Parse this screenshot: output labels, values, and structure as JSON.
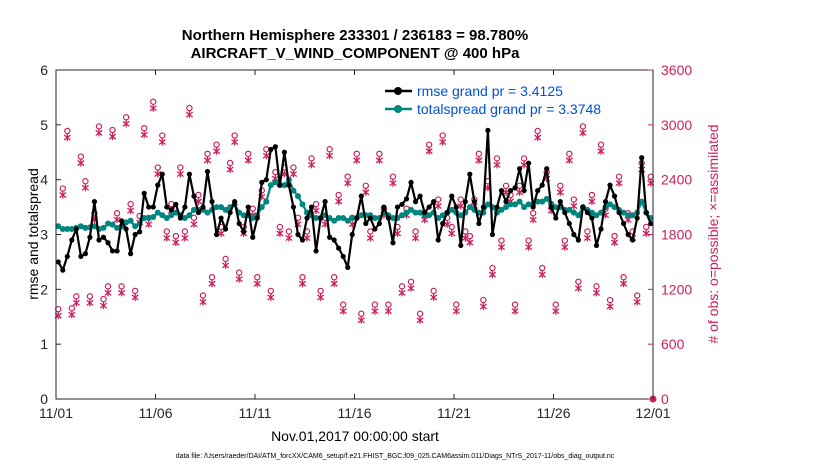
{
  "chart_data": {
    "type": "line",
    "title": "Northern Hemisphere 233301 / 236183 = 98.780%",
    "subtitle": "AIRCRAFT_V_WIND_COMPONENT @ 400 hPa",
    "xlabel": "Nov.01,2017 00:00:00 start",
    "ylabel_left": "rmse and totalspread",
    "ylabel_right": "# of obs: o=possible; ×=assimilated",
    "footer": "data file: /Users/raeder/DAI/ATM_forcXX/CAM6_setup/f.e21.FHIST_BGC.f09_025.CAM6assim.011/Diags_NTrS_2017-11/obs_diag_output.nc",
    "x_ticks": [
      "11/01",
      "11/06",
      "11/11",
      "11/16",
      "11/21",
      "11/26",
      "12/01"
    ],
    "x_range_days": [
      0,
      30
    ],
    "y_left_ticks": [
      "0",
      "1",
      "2",
      "3",
      "4",
      "5",
      "6"
    ],
    "y_left_range": [
      0,
      6
    ],
    "y_right_ticks": [
      "0",
      "600",
      "1200",
      "1800",
      "2400",
      "3000",
      "3600"
    ],
    "y_right_range": [
      0,
      3600
    ],
    "colors": {
      "rmse": "#000000",
      "spread": "#00857f",
      "obs": "#cc1f5d",
      "legend_text": "#0050d8"
    },
    "legend": [
      {
        "name": "rmse grand pr = 3.4125",
        "series": "rmse"
      },
      {
        "name": "totalspread grand pr = 3.3748",
        "series": "spread"
      }
    ],
    "series": [
      {
        "name": "rmse",
        "axis": "left",
        "values": [
          2.5,
          2.35,
          2.6,
          2.9,
          3.1,
          2.6,
          2.65,
          2.95,
          3.6,
          2.9,
          2.95,
          2.85,
          2.7,
          2.7,
          3.25,
          3.1,
          2.65,
          3.0,
          3.05,
          3.75,
          3.5,
          3.5,
          3.9,
          4.1,
          3.5,
          3.45,
          3.55,
          3.3,
          3.5,
          4.1,
          3.7,
          3.4,
          3.5,
          4.15,
          3.6,
          3.0,
          3.3,
          3.1,
          3.4,
          3.6,
          3.2,
          3.05,
          3.5,
          2.95,
          3.3,
          3.95,
          4.0,
          4.55,
          4.6,
          3.9,
          4.5,
          3.9,
          3.5,
          3.0,
          2.9,
          3.3,
          3.5,
          2.7,
          3.3,
          3.6,
          2.95,
          2.9,
          2.75,
          2.6,
          2.4,
          3.0,
          3.3,
          3.7,
          3.2,
          3.3,
          3.1,
          3.2,
          3.5,
          3.3,
          2.85,
          3.5,
          3.55,
          3.65,
          3.95,
          3.6,
          3.7,
          3.4,
          3.5,
          3.6,
          2.9,
          3.2,
          3.4,
          3.7,
          3.5,
          2.8,
          3.6,
          4.1,
          3.6,
          3.2,
          3.5,
          4.9,
          3.0,
          3.5,
          3.8,
          3.6,
          3.8,
          3.85,
          4.2,
          3.8,
          4.3,
          3.5,
          3.8,
          3.9,
          4.2,
          3.5,
          3.3,
          3.6,
          3.4,
          3.2,
          3.0,
          2.9,
          3.5,
          3.4,
          3.3,
          2.8,
          3.1,
          3.6,
          3.9,
          3.7,
          3.4,
          3.2,
          3.0,
          2.9,
          3.3,
          4.4,
          3.4,
          3.2
        ]
      },
      {
        "name": "totalspread",
        "axis": "left",
        "values": [
          3.15,
          3.1,
          3.1,
          3.1,
          3.12,
          3.15,
          3.12,
          3.13,
          3.15,
          3.1,
          3.12,
          3.2,
          3.18,
          3.12,
          3.15,
          3.22,
          3.25,
          3.15,
          3.2,
          3.3,
          3.3,
          3.32,
          3.4,
          3.35,
          3.3,
          3.35,
          3.4,
          3.35,
          3.3,
          3.35,
          3.45,
          3.45,
          3.45,
          3.4,
          3.45,
          3.5,
          3.5,
          3.45,
          3.5,
          3.55,
          3.4,
          3.35,
          3.35,
          3.3,
          3.35,
          3.5,
          3.6,
          3.9,
          3.95,
          3.9,
          3.9,
          4.0,
          3.8,
          3.7,
          3.55,
          3.4,
          3.35,
          3.3,
          3.3,
          3.35,
          3.3,
          3.25,
          3.3,
          3.3,
          3.25,
          3.3,
          3.3,
          3.35,
          3.35,
          3.35,
          3.3,
          3.3,
          3.4,
          3.35,
          3.3,
          3.3,
          3.35,
          3.4,
          3.45,
          3.4,
          3.4,
          3.35,
          3.35,
          3.4,
          3.3,
          3.35,
          3.4,
          3.45,
          3.4,
          3.35,
          3.4,
          3.5,
          3.45,
          3.4,
          3.4,
          3.55,
          3.5,
          3.4,
          3.45,
          3.5,
          3.55,
          3.55,
          3.6,
          3.5,
          3.55,
          3.55,
          3.6,
          3.6,
          3.65,
          3.55,
          3.5,
          3.5,
          3.45,
          3.45,
          3.4,
          3.35,
          3.5,
          3.45,
          3.4,
          3.35,
          3.4,
          3.5,
          3.55,
          3.5,
          3.45,
          3.4,
          3.35,
          3.35,
          3.4,
          3.6,
          3.4,
          3.3
        ]
      },
      {
        "name": "obs possible / assimilated",
        "axis": "right",
        "values": [
          950,
          2270,
          2900,
          960,
          1090,
          2620,
          2350,
          1090,
          2000,
          2950,
          1060,
          1200,
          2910,
          2000,
          1200,
          3050,
          2100,
          1150,
          1970,
          2930,
          1950,
          3220,
          2500,
          2850,
          1800,
          2100,
          1750,
          2500,
          1800,
          3150,
          1950,
          2200,
          1100,
          2650,
          1300,
          2750,
          1850,
          1500,
          2550,
          2850,
          1350,
          1850,
          2650,
          2050,
          1300,
          2250,
          2700,
          1150,
          2450,
          1850,
          2500,
          1800,
          2500,
          1950,
          1300,
          1800,
          2600,
          2100,
          1150,
          1950,
          2700,
          1300,
          2200,
          1000,
          2400,
          1950,
          2650,
          900,
          2300,
          1800,
          1000,
          2650,
          2050,
          1000,
          2400,
          1850,
          1200,
          2050,
          1250,
          1800,
          900,
          2000,
          2750,
          1150,
          2150,
          2850,
          1950,
          1850,
          1000,
          2150,
          1800,
          1750,
          2150,
          2650,
          1050,
          2350,
          1400,
          2600,
          1700,
          2300,
          2200,
          1000,
          2300,
          2600,
          1700,
          2000,
          2900,
          1400,
          2450,
          2100,
          1000,
          2300,
          1700,
          2650,
          2150,
          1250,
          2950,
          1800,
          2200,
          1200,
          2750,
          2050,
          1050,
          1750,
          2400,
          1300,
          2000,
          1800,
          1100,
          2550,
          1850,
          2400
        ]
      }
    ]
  }
}
